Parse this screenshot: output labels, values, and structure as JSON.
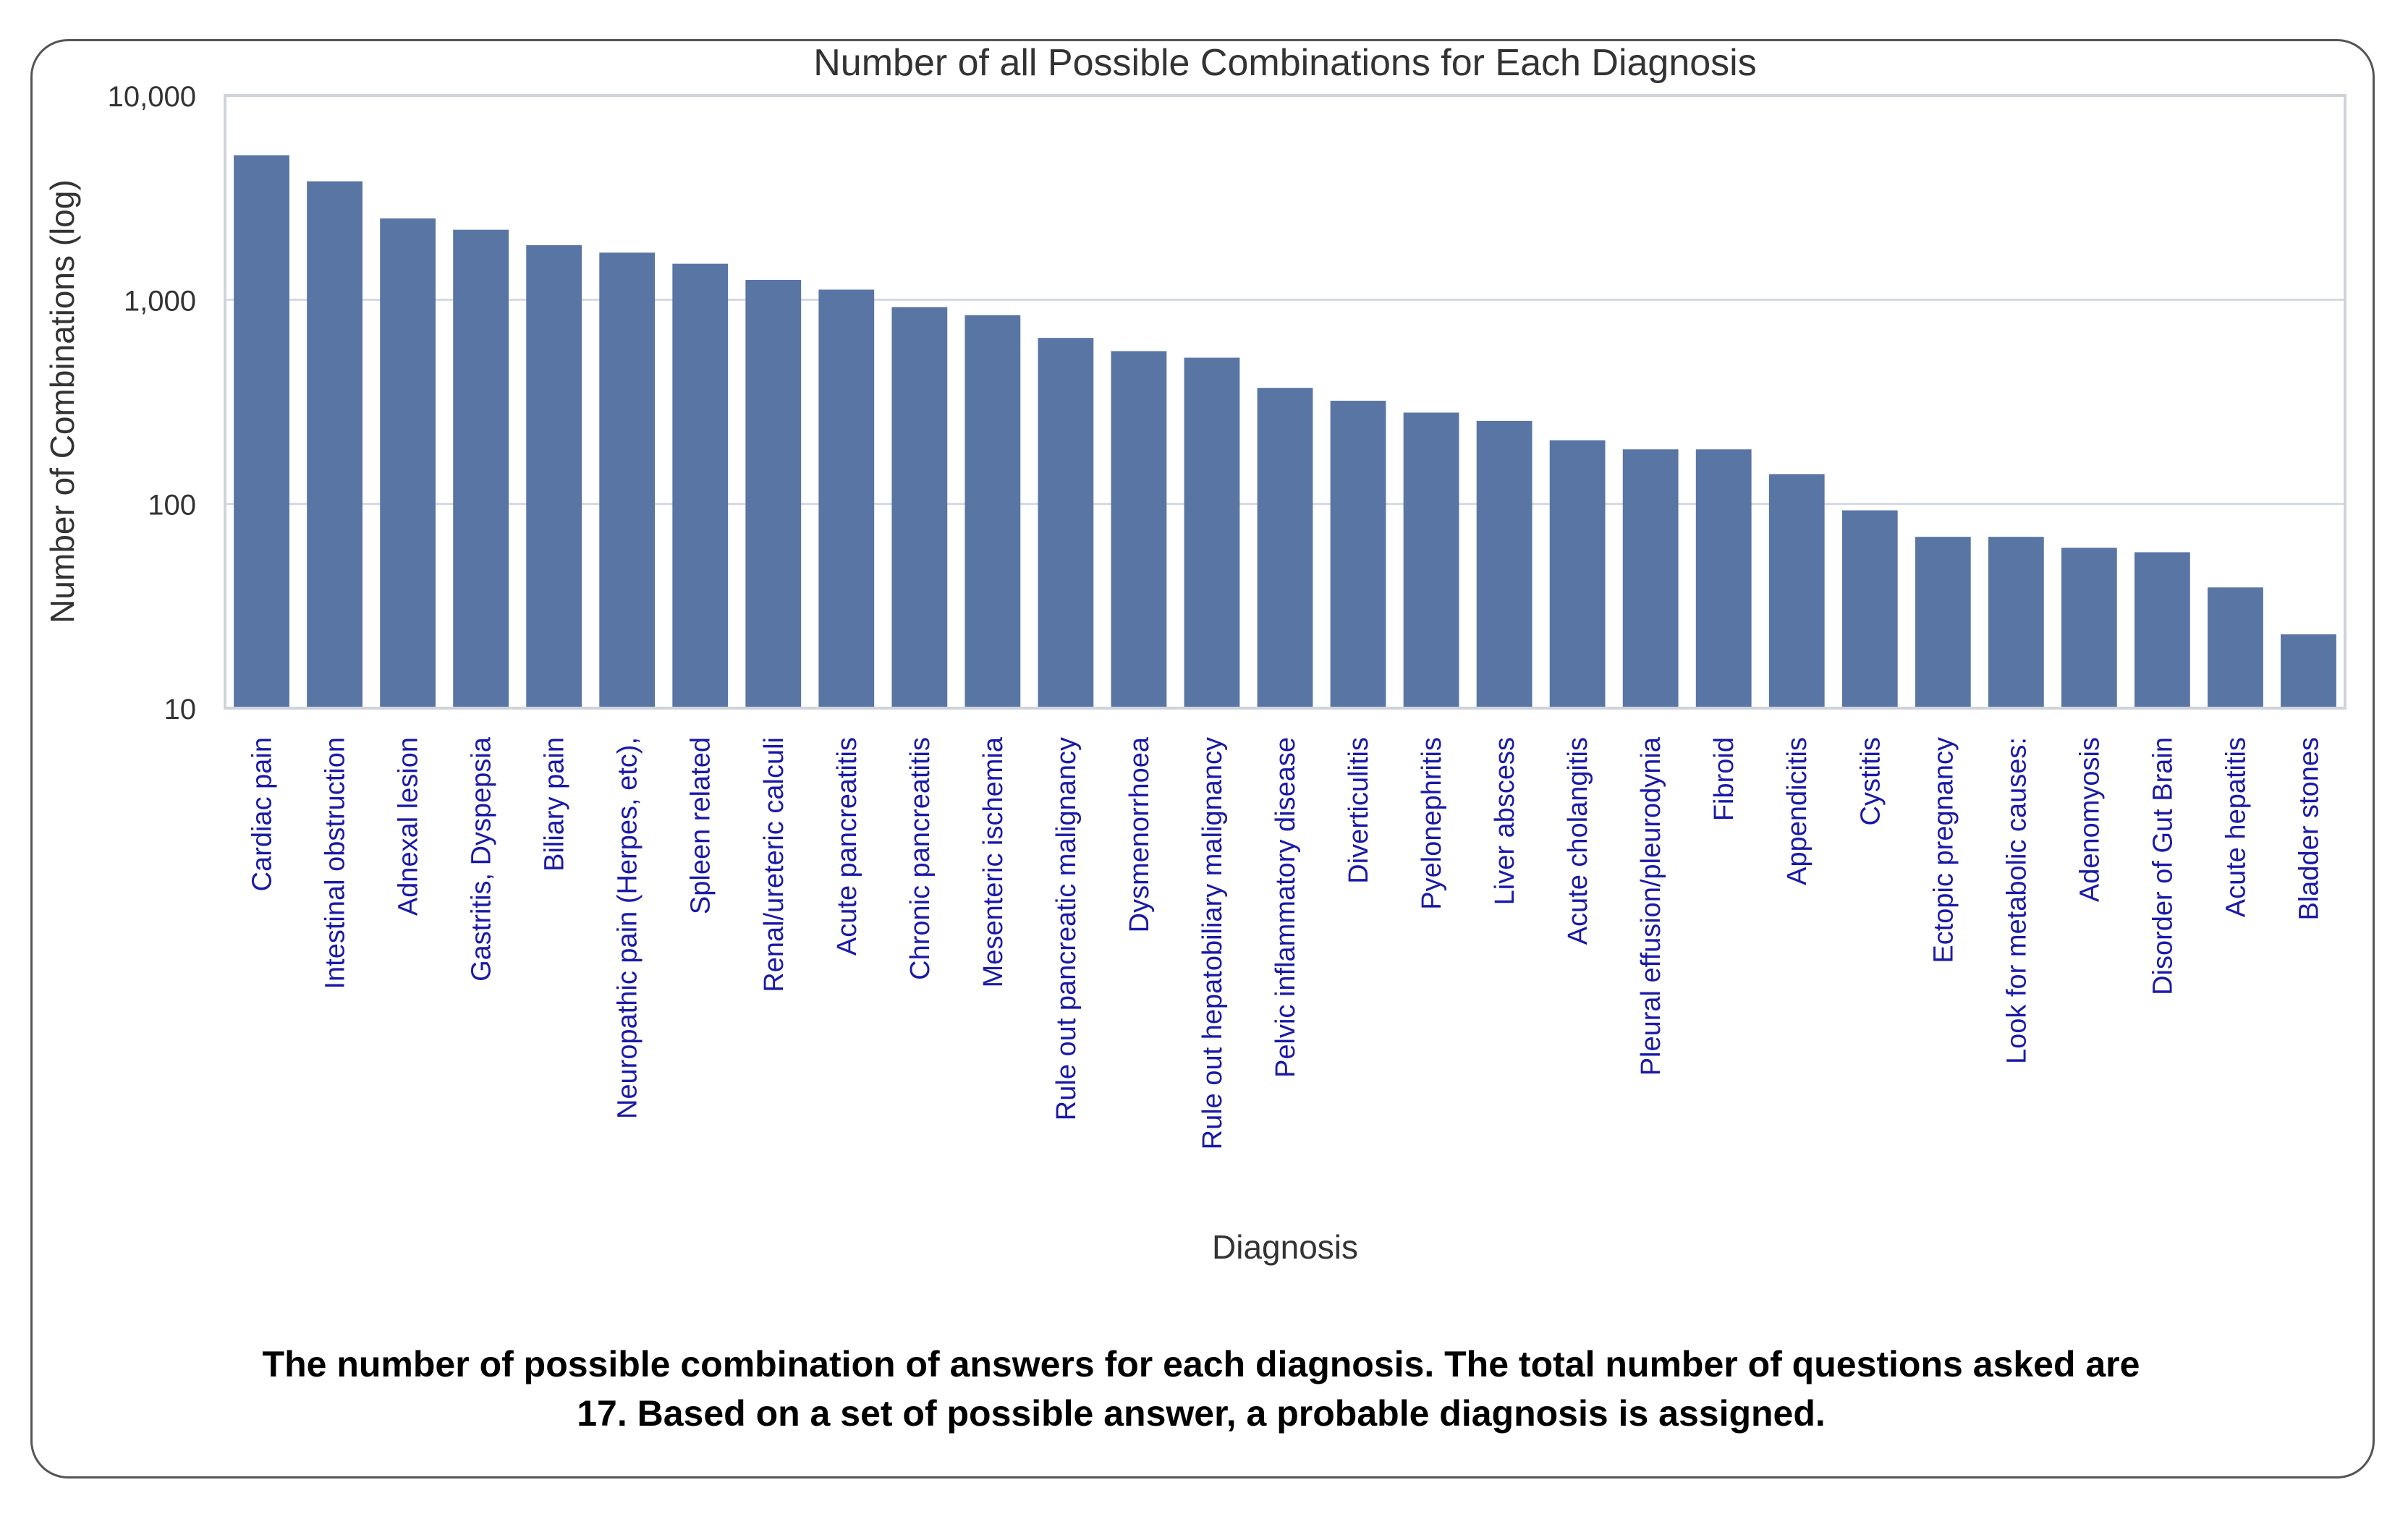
{
  "chart_data": {
    "type": "bar",
    "title": "Number of all Possible Combinations for Each Diagnosis",
    "xlabel": "Diagnosis",
    "ylabel": "Number of Combinations (log)",
    "yscale": "log",
    "ylim": [
      10,
      10000
    ],
    "yticks": [
      10,
      100,
      1000,
      10000
    ],
    "ytick_labels": [
      "10",
      "100",
      "1,000",
      "10,000"
    ],
    "grid": "horizontal",
    "bar_color": "#5875a4",
    "tick_label_color": "#1a1aa6",
    "categories": [
      "Cardiac pain",
      "Intestinal obstruction",
      "Adnexal lesion",
      "Gastritis, Dyspepsia",
      "Biliary pain",
      "Neuropathic pain (Herpes, etc),",
      "Spleen related",
      "Renal/ureteric calculi",
      "Acute pancreatitis",
      "Chronic pancreatitis",
      "Mesenteric ischemia",
      "Rule out pancreatic malignancy",
      "Dysmenorrhoea",
      "Rule out hepatobiliary malignancy",
      "Pelvic inflammatory disease",
      "Diverticulitis",
      "Pyelonephritis",
      "Liver abscess",
      "Acute cholangitis",
      "Pleural effusion/pleurodynia",
      "Fibroid",
      "Appendicitis",
      "Cystitis",
      "Ectopic pregnancy",
      "Look for metabolic causes:",
      "Adenomyosis",
      "Disorder of Gut Brain",
      "Acute hepatitis",
      "Bladder stones"
    ],
    "values": [
      5100,
      3800,
      2500,
      2200,
      1850,
      1700,
      1500,
      1250,
      1120,
      920,
      840,
      650,
      560,
      520,
      370,
      320,
      280,
      255,
      205,
      185,
      185,
      140,
      93,
      69,
      69,
      61,
      58,
      39,
      23
    ]
  },
  "caption": {
    "line1": "The number of possible combination of answers for each diagnosis. The total number of questions asked are",
    "line2": "17. Based on a set of possible answer, a probable diagnosis is assigned."
  }
}
